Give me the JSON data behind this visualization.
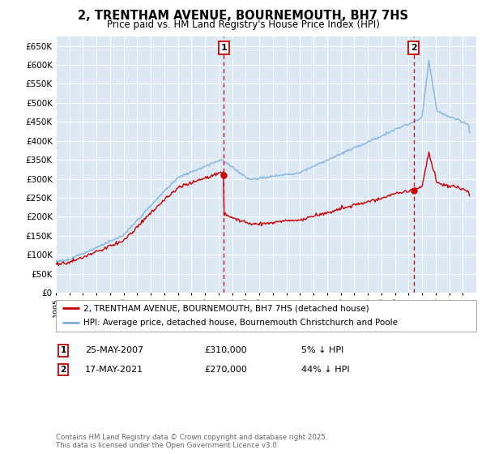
{
  "title": "2, TRENTHAM AVENUE, BOURNEMOUTH, BH7 7HS",
  "subtitle": "Price paid vs. HM Land Registry's House Price Index (HPI)",
  "hpi_color": "#7aaedc",
  "price_color": "#cc0000",
  "dashed_color": "#cc0000",
  "plot_bg": "#dce9f5",
  "ylim": [
    0,
    675000
  ],
  "ytick_step": 50000,
  "legend_line1": "2, TRENTHAM AVENUE, BOURNEMOUTH, BH7 7HS (detached house)",
  "legend_line2": "HPI: Average price, detached house, Bournemouth Christchurch and Poole",
  "sale1_date": "25-MAY-2007",
  "sale1_price": "£310,000",
  "sale1_hpi": "5% ↓ HPI",
  "sale1_year": 2007.38,
  "sale1_value": 310000,
  "sale2_date": "17-MAY-2021",
  "sale2_price": "£270,000",
  "sale2_hpi": "44% ↓ HPI",
  "sale2_year": 2021.38,
  "sale2_value": 270000,
  "footnote": "Contains HM Land Registry data © Crown copyright and database right 2025.\nThis data is licensed under the Open Government Licence v3.0."
}
